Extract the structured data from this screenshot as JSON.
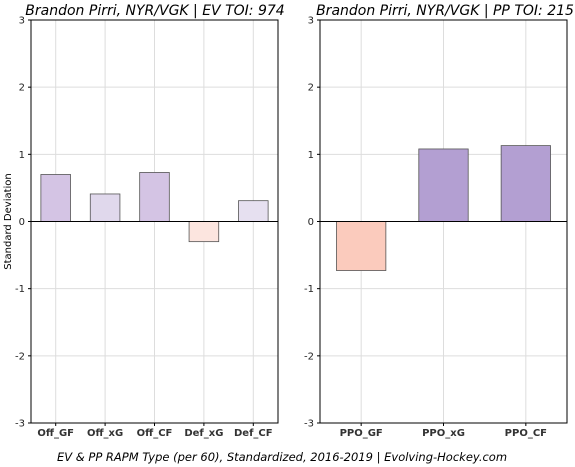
{
  "chart_data": [
    {
      "type": "bar",
      "title": "Brandon Pirri, NYR/VGK  |  EV TOI: 974",
      "ylabel": "Standard Deviation",
      "ylim": [
        -3,
        3
      ],
      "yticks": [
        "-3",
        "-2",
        "-1",
        "0",
        "1",
        "2",
        "3"
      ],
      "grid": true,
      "categories": [
        "Off_GF",
        "Off_xG",
        "Off_CF",
        "Def_xG",
        "Def_CF"
      ],
      "values": [
        0.7,
        0.41,
        0.73,
        -0.3,
        0.31
      ],
      "colors": [
        "#d4c4e4",
        "#e0d8ec",
        "#d4c4e4",
        "#fce5df",
        "#e6e0f0"
      ]
    },
    {
      "type": "bar",
      "title": "Brandon Pirri, NYR/VGK  |  PP TOI: 215",
      "ylabel": "",
      "ylim": [
        -3,
        3
      ],
      "yticks": [
        "-3",
        "-2",
        "-1",
        "0",
        "1",
        "2",
        "3"
      ],
      "grid": true,
      "categories": [
        "PPO_GF",
        "PPO_xG",
        "PPO_CF"
      ],
      "values": [
        -0.73,
        1.08,
        1.13
      ],
      "colors": [
        "#fbcbbd",
        "#b39fd2",
        "#b39fd2"
      ]
    }
  ],
  "footer": "EV & PP RAPM Type (per 60), Standardized, 2016-2019    |    Evolving-Hockey.com"
}
